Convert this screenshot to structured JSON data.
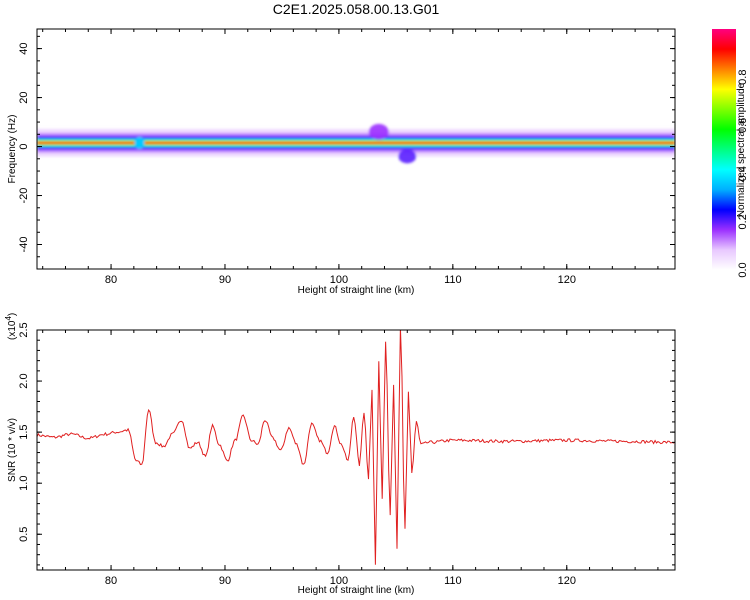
{
  "figure": {
    "title": "C2E1.2025.058.00.13.G01"
  },
  "chart_data": [
    {
      "type": "heatmap",
      "name": "spectrogram",
      "xlabel": "Height of straight line (km)",
      "ylabel": "Frequency (Hz)",
      "xlim": [
        73.5,
        129.5
      ],
      "ylim": [
        -50,
        48
      ],
      "xticks": [
        80,
        90,
        100,
        110,
        120
      ],
      "yticks": [
        40,
        20,
        0,
        -20,
        -40
      ],
      "grid": false,
      "colorbar": {
        "label": "Normalized spectral amplitude",
        "range": [
          0,
          1
        ],
        "ticks": [
          0.0,
          0.2,
          0.4,
          0.6,
          0.8
        ],
        "colormap": [
          "#ffffff",
          "#e8c8ff",
          "#9b30ff",
          "#0000ff",
          "#00b0ff",
          "#00ffff",
          "#00ff80",
          "#00ff00",
          "#80ff00",
          "#ffff00",
          "#ff8000",
          "#ff0000",
          "#ff0080"
        ]
      },
      "band": {
        "center_hz": 1.5,
        "features": [
          {
            "x": 82.5,
            "note": "notch"
          },
          {
            "x": 103.5,
            "note": "upward burst"
          },
          {
            "x": 106,
            "note": "downward burst"
          }
        ]
      }
    },
    {
      "type": "line",
      "name": "snr",
      "xlabel": "Height of straight line (km)",
      "ylabel": "SNR (10 * v/v)",
      "yunit_label": "(x10",
      "yunit_exp": "4",
      "yunit_close": ")",
      "xlim": [
        73.5,
        129.5
      ],
      "ylim": [
        0.15,
        2.5
      ],
      "xticks": [
        80,
        90,
        100,
        110,
        120
      ],
      "yticks": [
        0.5,
        1.0,
        1.5,
        2.0,
        2.5
      ],
      "color": "#e02020",
      "grid": false,
      "x": [
        73.5,
        75,
        76.5,
        78,
        79.5,
        80.5,
        81.5,
        82.2,
        82.7,
        83.3,
        83.9,
        84.6,
        85.4,
        86.2,
        86.9,
        87.6,
        88.3,
        88.9,
        89.5,
        90.2,
        90.9,
        91.6,
        92.3,
        92.9,
        93.5,
        94.2,
        94.9,
        95.6,
        96.3,
        96.9,
        97.6,
        98.3,
        99.0,
        99.6,
        100.2,
        100.8,
        101.3,
        101.8,
        102.2,
        102.6,
        102.9,
        103.2,
        103.5,
        103.8,
        104.1,
        104.5,
        104.8,
        105.1,
        105.4,
        105.8,
        106.1,
        106.4,
        106.8,
        107.2,
        108,
        110,
        115,
        120,
        125,
        129.5
      ],
      "y": [
        1.47,
        1.45,
        1.48,
        1.44,
        1.48,
        1.5,
        1.52,
        1.22,
        1.18,
        1.72,
        1.4,
        1.36,
        1.48,
        1.62,
        1.34,
        1.4,
        1.26,
        1.56,
        1.38,
        1.22,
        1.42,
        1.66,
        1.42,
        1.38,
        1.62,
        1.44,
        1.32,
        1.54,
        1.38,
        1.18,
        1.58,
        1.42,
        1.3,
        1.56,
        1.38,
        1.22,
        1.66,
        1.18,
        1.7,
        1.05,
        1.92,
        0.2,
        2.18,
        0.85,
        2.4,
        0.7,
        1.95,
        0.35,
        2.52,
        0.55,
        1.9,
        1.1,
        1.6,
        1.38,
        1.4,
        1.42,
        1.41,
        1.42,
        1.41,
        1.4
      ]
    }
  ]
}
